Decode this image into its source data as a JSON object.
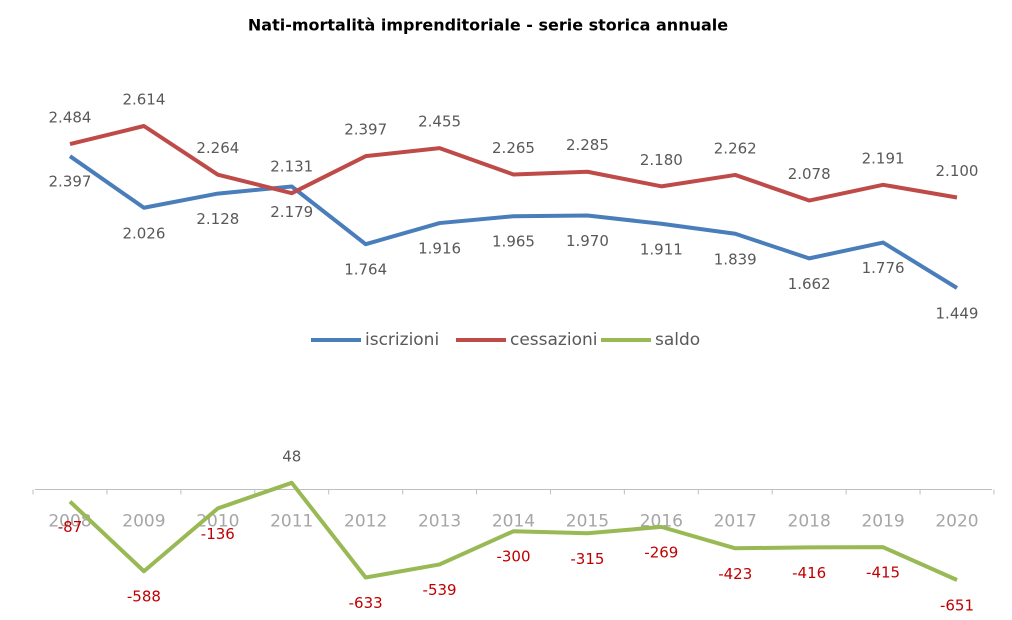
{
  "chart_data": {
    "type": "line",
    "title": "Nati-mortalità imprenditoriale - serie storica annuale",
    "categories": [
      "2008",
      "2009",
      "2010",
      "2011",
      "2012",
      "2013",
      "2014",
      "2015",
      "2016",
      "2017",
      "2018",
      "2019",
      "2020"
    ],
    "series": [
      {
        "name": "iscrizioni",
        "color": "#4a7ebb",
        "values": [
          2397,
          2026,
          2128,
          2179,
          1764,
          1916,
          1965,
          1970,
          1911,
          1839,
          1662,
          1776,
          1449
        ],
        "value_labels": [
          "2.397",
          "2.026",
          "2.128",
          "2.179",
          "1.764",
          "1.916",
          "1.965",
          "1.970",
          "1.911",
          "1.839",
          "1.662",
          "1.776",
          "1.449"
        ]
      },
      {
        "name": "cessazioni",
        "color": "#be4b48",
        "values": [
          2484,
          2614,
          2264,
          2131,
          2397,
          2455,
          2265,
          2285,
          2180,
          2262,
          2078,
          2191,
          2100
        ],
        "value_labels": [
          "2.484",
          "2.614",
          "2.264",
          "2.131",
          "2.397",
          "2.455",
          "2.265",
          "2.285",
          "2.180",
          "2.262",
          "2.078",
          "2.191",
          "2.100"
        ]
      },
      {
        "name": "saldo",
        "color": "#98b954",
        "values": [
          -87,
          -588,
          -136,
          48,
          -633,
          -539,
          -300,
          -315,
          -269,
          -423,
          -416,
          -415,
          -651
        ]
      }
    ],
    "legend": "middle"
  }
}
